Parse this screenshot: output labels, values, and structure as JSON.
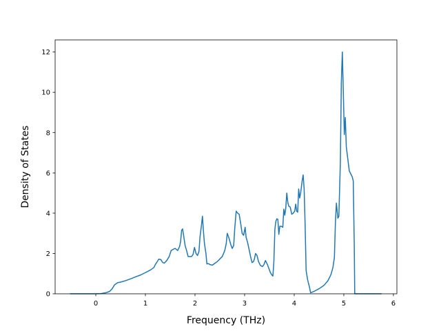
{
  "chart_data": {
    "type": "line",
    "title": "",
    "xlabel": "Frequency (THz)",
    "ylabel": "Density of States",
    "xlim": [
      -0.82,
      6.07
    ],
    "ylim": [
      0,
      12.6
    ],
    "x_ticks": [
      0,
      1,
      2,
      3,
      4,
      5,
      6
    ],
    "y_ticks": [
      0,
      2,
      4,
      6,
      8,
      10,
      12
    ],
    "grid": false,
    "legend": "none",
    "line_color": "#1f77b4",
    "series": [
      {
        "points": [
          [
            -0.52,
            0
          ],
          [
            0.0,
            0
          ],
          [
            0.1,
            0.01
          ],
          [
            0.2,
            0.05
          ],
          [
            0.28,
            0.12
          ],
          [
            0.33,
            0.25
          ],
          [
            0.38,
            0.45
          ],
          [
            0.44,
            0.55
          ],
          [
            0.5,
            0.58
          ],
          [
            0.6,
            0.65
          ],
          [
            0.7,
            0.74
          ],
          [
            0.8,
            0.84
          ],
          [
            0.9,
            0.93
          ],
          [
            1.0,
            1.05
          ],
          [
            1.1,
            1.18
          ],
          [
            1.17,
            1.3
          ],
          [
            1.2,
            1.45
          ],
          [
            1.24,
            1.6
          ],
          [
            1.27,
            1.72
          ],
          [
            1.31,
            1.7
          ],
          [
            1.35,
            1.55
          ],
          [
            1.38,
            1.52
          ],
          [
            1.43,
            1.65
          ],
          [
            1.48,
            1.85
          ],
          [
            1.52,
            2.15
          ],
          [
            1.57,
            2.22
          ],
          [
            1.6,
            2.25
          ],
          [
            1.65,
            2.15
          ],
          [
            1.69,
            2.35
          ],
          [
            1.71,
            2.6
          ],
          [
            1.73,
            3.15
          ],
          [
            1.75,
            3.22
          ],
          [
            1.77,
            2.9
          ],
          [
            1.8,
            2.4
          ],
          [
            1.83,
            2.15
          ],
          [
            1.86,
            1.85
          ],
          [
            1.93,
            1.85
          ],
          [
            1.96,
            1.95
          ],
          [
            1.99,
            2.3
          ],
          [
            2.02,
            2.0
          ],
          [
            2.05,
            1.9
          ],
          [
            2.08,
            2.1
          ],
          [
            2.1,
            2.8
          ],
          [
            2.13,
            3.4
          ],
          [
            2.15,
            3.85
          ],
          [
            2.17,
            3.1
          ],
          [
            2.19,
            2.5
          ],
          [
            2.22,
            2.0
          ],
          [
            2.24,
            1.48
          ],
          [
            2.27,
            1.5
          ],
          [
            2.3,
            1.45
          ],
          [
            2.35,
            1.42
          ],
          [
            2.45,
            1.6
          ],
          [
            2.55,
            1.85
          ],
          [
            2.6,
            2.15
          ],
          [
            2.63,
            2.5
          ],
          [
            2.65,
            3.0
          ],
          [
            2.68,
            2.8
          ],
          [
            2.72,
            2.45
          ],
          [
            2.75,
            2.25
          ],
          [
            2.78,
            2.4
          ],
          [
            2.8,
            3.2
          ],
          [
            2.83,
            4.1
          ],
          [
            2.86,
            4.0
          ],
          [
            2.89,
            3.95
          ],
          [
            2.92,
            3.5
          ],
          [
            2.95,
            3.0
          ],
          [
            2.98,
            2.9
          ],
          [
            3.01,
            3.3
          ],
          [
            3.03,
            2.8
          ],
          [
            3.06,
            2.55
          ],
          [
            3.09,
            2.2
          ],
          [
            3.12,
            1.85
          ],
          [
            3.15,
            1.55
          ],
          [
            3.18,
            1.6
          ],
          [
            3.2,
            1.75
          ],
          [
            3.22,
            2.0
          ],
          [
            3.25,
            1.9
          ],
          [
            3.28,
            1.6
          ],
          [
            3.32,
            1.4
          ],
          [
            3.36,
            1.35
          ],
          [
            3.39,
            1.45
          ],
          [
            3.42,
            1.65
          ],
          [
            3.46,
            1.45
          ],
          [
            3.49,
            1.25
          ],
          [
            3.52,
            1.05
          ],
          [
            3.55,
            0.93
          ],
          [
            3.57,
            0.88
          ],
          [
            3.59,
            1.6
          ],
          [
            3.61,
            3.2
          ],
          [
            3.63,
            3.6
          ],
          [
            3.65,
            3.72
          ],
          [
            3.67,
            3.7
          ],
          [
            3.69,
            2.95
          ],
          [
            3.71,
            3.35
          ],
          [
            3.74,
            3.35
          ],
          [
            3.77,
            3.3
          ],
          [
            3.79,
            4.2
          ],
          [
            3.81,
            3.9
          ],
          [
            3.83,
            4.25
          ],
          [
            3.85,
            5.0
          ],
          [
            3.87,
            4.55
          ],
          [
            3.89,
            4.35
          ],
          [
            3.92,
            4.3
          ],
          [
            3.95,
            3.95
          ],
          [
            3.98,
            4.0
          ],
          [
            4.01,
            4.1
          ],
          [
            4.03,
            4.45
          ],
          [
            4.05,
            4.1
          ],
          [
            4.07,
            4.05
          ],
          [
            4.09,
            5.2
          ],
          [
            4.11,
            4.75
          ],
          [
            4.13,
            5.0
          ],
          [
            4.16,
            5.6
          ],
          [
            4.18,
            5.9
          ],
          [
            4.2,
            5.2
          ],
          [
            4.22,
            3.4
          ],
          [
            4.24,
            1.15
          ],
          [
            4.27,
            0.7
          ],
          [
            4.31,
            0.3
          ],
          [
            4.33,
            0.05
          ],
          [
            4.4,
            0.12
          ],
          [
            4.5,
            0.25
          ],
          [
            4.6,
            0.42
          ],
          [
            4.68,
            0.65
          ],
          [
            4.74,
            0.95
          ],
          [
            4.78,
            1.3
          ],
          [
            4.81,
            1.8
          ],
          [
            4.83,
            3.5
          ],
          [
            4.85,
            4.5
          ],
          [
            4.87,
            4.0
          ],
          [
            4.88,
            3.75
          ],
          [
            4.9,
            3.85
          ],
          [
            4.93,
            6.5
          ],
          [
            4.95,
            10.5
          ],
          [
            4.97,
            12.0
          ],
          [
            4.99,
            10.0
          ],
          [
            5.01,
            7.9
          ],
          [
            5.03,
            8.75
          ],
          [
            5.05,
            7.3
          ],
          [
            5.08,
            6.7
          ],
          [
            5.11,
            6.1
          ],
          [
            5.14,
            5.95
          ],
          [
            5.17,
            5.8
          ],
          [
            5.19,
            5.6
          ],
          [
            5.21,
            2.5
          ],
          [
            5.22,
            0
          ],
          [
            5.3,
            0
          ],
          [
            5.5,
            0
          ],
          [
            5.76,
            0
          ]
        ]
      }
    ]
  }
}
